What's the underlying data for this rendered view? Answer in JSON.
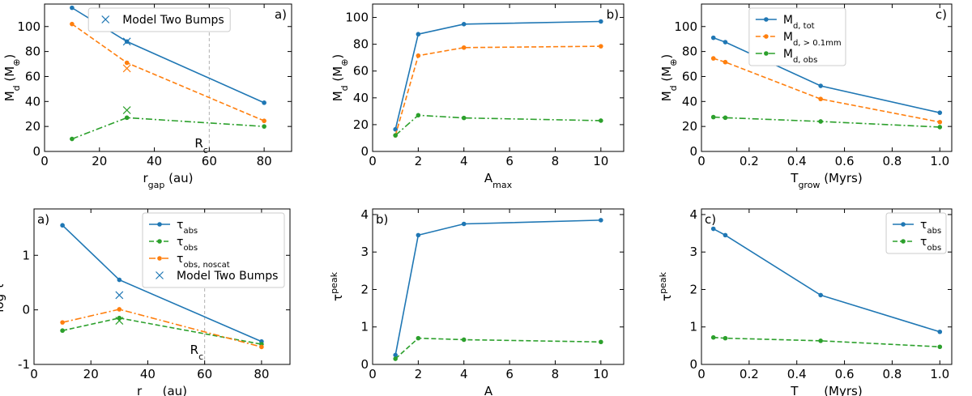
{
  "colors": {
    "blue": "#1f77b4",
    "orange": "#ff7f0e",
    "green": "#2ca02c",
    "vline": "#b0b0b0"
  },
  "chart_data": [
    {
      "type": "line",
      "panel_label": "a)",
      "xlabel": "r",
      "xlabel_sub": "gap",
      "xlabel_tail": " (au)",
      "ylabel": "M",
      "ylabel_sub": "d",
      "ylabel_tail": " (M",
      "ylabel_unit": "⊕",
      "ylabel_close": ")",
      "xlim": [
        0,
        90
      ],
      "ylim": [
        0,
        118
      ],
      "xticks": [
        0,
        20,
        40,
        60,
        80
      ],
      "yticks": [
        0,
        20,
        40,
        60,
        80,
        100
      ],
      "vline": {
        "x": 60,
        "label": "R",
        "label_sub": "c",
        "label_y": 7
      },
      "series": [
        {
          "color": "blue",
          "style": "solid",
          "x": [
            10,
            30,
            80
          ],
          "y": [
            115,
            88,
            39
          ]
        },
        {
          "color": "orange",
          "style": "dashed",
          "x": [
            10,
            30,
            80
          ],
          "y": [
            102,
            71,
            24.5
          ]
        },
        {
          "color": "green",
          "style": "dashdot",
          "x": [
            10,
            30,
            80
          ],
          "y": [
            10,
            27,
            20
          ]
        }
      ],
      "crosses": [
        {
          "color": "blue",
          "x": 30,
          "y": 88
        },
        {
          "color": "orange",
          "x": 30,
          "y": 66.5
        },
        {
          "color": "green",
          "x": 30,
          "y": 33
        }
      ],
      "legend": {
        "position": "top-center",
        "entries": [
          {
            "marker": "cross",
            "color": "blue",
            "label": "Model Two Bumps"
          }
        ]
      }
    },
    {
      "type": "line",
      "panel_label": "b)",
      "xlabel": "A",
      "xlabel_sub": "max",
      "xlabel_tail": "",
      "ylabel": "M",
      "ylabel_sub": "d",
      "ylabel_tail": " (M",
      "ylabel_unit": "⊕",
      "ylabel_close": ")",
      "xlim": [
        0,
        11
      ],
      "ylim": [
        0,
        110
      ],
      "xticks": [
        0,
        2,
        4,
        6,
        8,
        10
      ],
      "yticks": [
        0,
        20,
        40,
        60,
        80,
        100
      ],
      "series": [
        {
          "color": "blue",
          "style": "solid",
          "x": [
            1,
            2,
            4,
            10
          ],
          "y": [
            16.5,
            87.5,
            95,
            97
          ]
        },
        {
          "color": "orange",
          "style": "dashed",
          "x": [
            1,
            2,
            4,
            10
          ],
          "y": [
            12,
            71.5,
            77.5,
            78.5
          ]
        },
        {
          "color": "green",
          "style": "dashdot",
          "x": [
            1,
            2,
            4,
            10
          ],
          "y": [
            12,
            27,
            25,
            23
          ]
        }
      ]
    },
    {
      "type": "line",
      "panel_label": "c)",
      "xlabel": "T",
      "xlabel_sub": "grow",
      "xlabel_tail": " (Myrs)",
      "ylabel": "M",
      "ylabel_sub": "d",
      "ylabel_tail": " (M",
      "ylabel_unit": "⊕",
      "ylabel_close": ")",
      "xlim": [
        0,
        1.05
      ],
      "ylim": [
        0,
        118
      ],
      "xticks": [
        0,
        0.2,
        0.4,
        0.6,
        0.8,
        1.0
      ],
      "xtick_labels": [
        "0",
        "0.2",
        "0.4",
        "0.6",
        "0.8",
        "1.0"
      ],
      "yticks": [
        0,
        20,
        40,
        60,
        80,
        100
      ],
      "series": [
        {
          "color": "blue",
          "style": "solid",
          "x": [
            0.05,
            0.1,
            0.5,
            1.0
          ],
          "y": [
            91,
            87.5,
            52.5,
            31
          ],
          "label": "M",
          "label_sub": "d, tot"
        },
        {
          "color": "orange",
          "style": "dashed",
          "x": [
            0.05,
            0.1,
            0.5,
            1.0
          ],
          "y": [
            74.5,
            71.5,
            42,
            23.5
          ],
          "label": "M",
          "label_sub": "d, > 0.1mm"
        },
        {
          "color": "green",
          "style": "dashdot",
          "x": [
            0.05,
            0.1,
            0.5,
            1.0
          ],
          "y": [
            27.5,
            27,
            24,
            19.5
          ],
          "label": "M",
          "label_sub": "d, obs"
        }
      ],
      "legend": {
        "position": "top-center"
      }
    },
    {
      "type": "line",
      "panel_label": "a)",
      "xlabel": "r",
      "xlabel_sub": "gap",
      "xlabel_tail": " (au)",
      "ylabel": "log τ",
      "ylabel_sup": "peak",
      "xlim": [
        0,
        90
      ],
      "ylim": [
        -1,
        1.85
      ],
      "xticks": [
        0,
        20,
        40,
        60,
        80
      ],
      "yticks": [
        -1,
        0,
        1
      ],
      "vline": {
        "x": 60,
        "label": "R",
        "label_sub": "c",
        "label_y": -0.72
      },
      "series": [
        {
          "color": "blue",
          "style": "solid",
          "x": [
            10,
            30,
            80
          ],
          "y": [
            1.55,
            0.55,
            -0.58
          ],
          "label": "τ",
          "label_sub": "abs"
        },
        {
          "color": "green",
          "style": "dashed",
          "x": [
            10,
            30,
            80
          ],
          "y": [
            -0.38,
            -0.15,
            -0.63
          ],
          "label": "τ",
          "label_sub": "obs"
        },
        {
          "color": "orange",
          "style": "dashdot",
          "x": [
            10,
            30,
            80
          ],
          "y": [
            -0.23,
            0.01,
            -0.68
          ],
          "label": "τ",
          "label_sub": "obs, noscat"
        }
      ],
      "crosses": [
        {
          "color": "blue",
          "x": 30,
          "y": 0.27
        },
        {
          "color": "green",
          "x": 30,
          "y": -0.2
        }
      ],
      "legend": {
        "position": "top-right",
        "entries_extra": [
          {
            "marker": "cross",
            "color": "blue",
            "label": "Model Two Bumps"
          }
        ]
      }
    },
    {
      "type": "line",
      "panel_label": "b)",
      "xlabel": "A",
      "xlabel_sub": "max",
      "xlabel_tail": "",
      "ylabel": "τ",
      "ylabel_sup": "peak",
      "xlim": [
        0,
        11
      ],
      "ylim": [
        0,
        4.15
      ],
      "xticks": [
        0,
        2,
        4,
        6,
        8,
        10
      ],
      "yticks": [
        0,
        1,
        2,
        3,
        4
      ],
      "series": [
        {
          "color": "blue",
          "style": "solid",
          "x": [
            1,
            2,
            4,
            10
          ],
          "y": [
            0.25,
            3.45,
            3.75,
            3.85
          ]
        },
        {
          "color": "green",
          "style": "dashed",
          "x": [
            1,
            2,
            4,
            10
          ],
          "y": [
            0.15,
            0.7,
            0.66,
            0.6
          ]
        }
      ]
    },
    {
      "type": "line",
      "panel_label": "c)",
      "xlabel": "T",
      "xlabel_sub": "grow",
      "xlabel_tail": " (Myrs)",
      "ylabel": "τ",
      "ylabel_sup": "peak",
      "xlim": [
        0,
        1.05
      ],
      "ylim": [
        0,
        4.15
      ],
      "xticks": [
        0,
        0.2,
        0.4,
        0.6,
        0.8,
        1.0
      ],
      "xtick_labels": [
        "0",
        "0.2",
        "0.4",
        "0.6",
        "0.8",
        "1.0"
      ],
      "yticks": [
        0,
        1,
        2,
        3,
        4
      ],
      "series": [
        {
          "color": "blue",
          "style": "solid",
          "x": [
            0.05,
            0.1,
            0.5,
            1.0
          ],
          "y": [
            3.62,
            3.45,
            1.85,
            0.87
          ],
          "label": "τ",
          "label_sub": "abs"
        },
        {
          "color": "green",
          "style": "dashed",
          "x": [
            0.05,
            0.1,
            0.5,
            1.0
          ],
          "y": [
            0.72,
            0.7,
            0.63,
            0.47
          ],
          "label": "τ",
          "label_sub": "obs"
        }
      ],
      "legend": {
        "position": "top-right"
      }
    }
  ]
}
